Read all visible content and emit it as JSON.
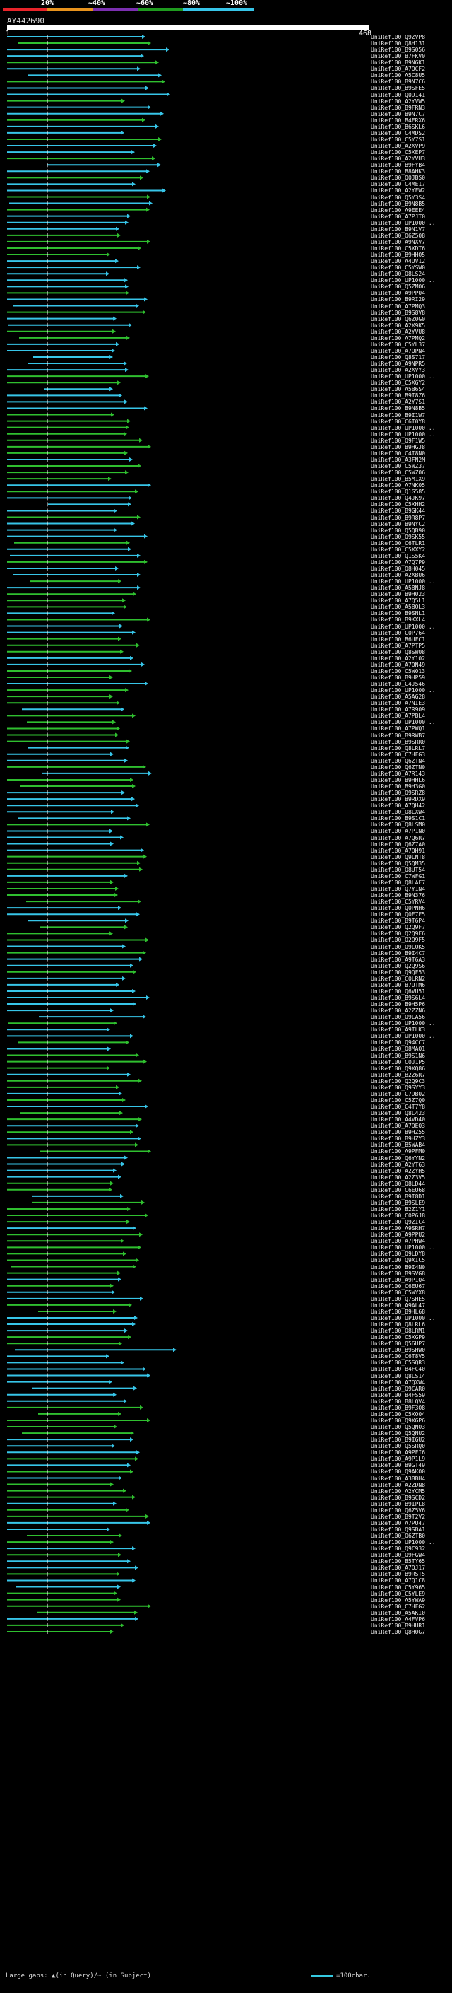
{
  "scale": {
    "labels": [
      "20%",
      "~40%",
      "~60%",
      "~80%",
      "~100%"
    ],
    "colors": [
      "#e8242a",
      "#e8931d",
      "#7b2fb0",
      "#1f9b1f",
      "#37c5e8"
    ]
  },
  "query": {
    "title": "AY442690",
    "start": "1",
    "end": "468"
  },
  "legend": {
    "large_gaps": "Large gaps: ▲(in Query)/~ (in Subject)",
    "scale_bar": "=100char."
  },
  "hit_names": [
    "UniRef100_Q9ZVP8",
    "UniRef100_Q8H131",
    "UniRef100_B9S056",
    "UniRef100_B7FKV0",
    "UniRef100_B9NGK1",
    "UniRef100_A7QCF2",
    "UniRef100_A5C8U5",
    "UniRef100_B9N7C6",
    "UniRef100_B9SFE5",
    "UniRef100_Q0D141",
    "UniRef100_A2YVW5",
    "UniRef100_B9FRN3",
    "UniRef100_B9N7C7",
    "UniRef100_B4FRX6",
    "UniRef100_B6SKL6",
    "UniRef100_C4MDS2",
    "UniRef100_C5Y7S1",
    "UniRef100_A2XVP9",
    "UniRef100_C5XEP7",
    "UniRef100_A2YVU3",
    "UniRef100_B9FYB4",
    "UniRef100_B8AHK3",
    "UniRef100_Q0JBS0",
    "UniRef100_C4ME17",
    "UniRef100_A2YFW2",
    "UniRef100_Q5Y3S4",
    "UniRef100_B9N8B5",
    "UniRef100_A9EEE4",
    "UniRef100_A7PJT0",
    "UniRef100_UP1000...",
    "UniRef100_B9N1V7",
    "UniRef100_Q6Z508",
    "UniRef100_A9NXV7",
    "UniRef100_C5XDT6",
    "UniRef100_B9HHO5",
    "UniRef100_A4UV12",
    "UniRef100_C5YSW0",
    "UniRef100_Q8LS24",
    "UniRef100_UP1000...",
    "UniRef100_Q5ZMO6",
    "UniRef100_A9PP04",
    "UniRef100_B9RI29",
    "UniRef100_A7PMQ3",
    "UniRef100_B9S8V8",
    "UniRef100_Q6Z0G0",
    "UniRef100_A2X9K5",
    "UniRef100_A2YVU8",
    "UniRef100_A7PMQ2",
    "UniRef100_C5YL37",
    "UniRef100_A7QPN4",
    "UniRef100_Q8S717",
    "UniRef100_A9NPR5",
    "UniRef100_A2XVY3",
    "UniRef100_UP1000...",
    "UniRef100_C5XGY2",
    "UniRef100_A5B6S4",
    "UniRef100_B9T8Z6",
    "UniRef100_A2Y7S1",
    "UniRef100_B9N8B5",
    "UniRef100_B9I1W7",
    "UniRef100_C6T0Y8",
    "UniRef100_UP1000...",
    "UniRef100_UP1000...",
    "UniRef100_Q9F1W5",
    "UniRef100_B9HGJ8",
    "UniRef100_C4I8N0",
    "UniRef100_A3FN2M",
    "UniRef100_C5WZ37",
    "UniRef100_C5WZ06",
    "UniRef100_B5M1X9",
    "UniRef100_A7NK05",
    "UniRef100_Q1G585",
    "UniRef100_Q4JK97",
    "UniRef100_C5XHH2",
    "UniRef100_B9GK44",
    "UniRef100_B9R8P7",
    "UniRef100_B9NYC2",
    "UniRef100_Q5QB90",
    "UniRef100_Q9SK55",
    "UniRef100_C6TLR1",
    "UniRef100_C5XXY2",
    "UniRef100_Q1S5K4",
    "UniRef100_A7Q7P9",
    "UniRef100_Q8H045",
    "UniRef100_A2XBU6",
    "UniRef100_UP1000...",
    "UniRef100_A5BNJ8",
    "UniRef100_B9H023",
    "UniRef100_A7Q5L1",
    "UniRef100_A5BQL3",
    "UniRef100_B9SNL1",
    "UniRef100_B9KXL4",
    "UniRef100_UP1000...",
    "UniRef100_C0P764",
    "UniRef100_B6UFC1",
    "UniRef100_A7PTP5",
    "UniRef100_Q8SW08",
    "UniRef100_A2Y102",
    "UniRef100_A7QN49",
    "UniRef100_C5W013",
    "UniRef100_B9HP59",
    "UniRef100_C4J546",
    "UniRef100_UP1000...",
    "UniRef100_A5AG28",
    "UniRef100_A7NIE3",
    "UniRef100_A7R909",
    "UniRef100_A7PBL4",
    "UniRef100_UP1000...",
    "UniRef100_A7PWQ1",
    "UniRef100_B9RWB7",
    "UniRef100_B9SRR0",
    "UniRef100_Q8LRL7",
    "UniRef100_C7HFG3",
    "UniRef100_Q6ZTN4",
    "UniRef100_Q6ZTN0",
    "UniRef100_A7R143",
    "UniRef100_B9HHL6",
    "UniRef100_B9H3G0",
    "UniRef100_Q9SRZ8",
    "UniRef100_B9RDX9",
    "UniRef100_A7QH42",
    "UniRef100_Q8LXW4",
    "UniRef100_B9S1C1",
    "UniRef100_Q8LSM0",
    "UniRef100_A7P1N0",
    "UniRef100_A7Q6R7",
    "UniRef100_Q6Z7A0",
    "UniRef100_A7QH91",
    "UniRef100_Q9LNT8",
    "UniRef100_Q5QM35",
    "UniRef100_Q8UT54",
    "UniRef100_C7WFG1",
    "UniRef100_Q8LAF7",
    "UniRef100_Q7Y1N4",
    "UniRef100_B9N376",
    "UniRef100_C5YRV4",
    "UniRef100_Q0PNH6",
    "UniRef100_Q0F7F5",
    "UniRef100_B9T6P4",
    "UniRef100_Q2Q9F7",
    "UniRef100_Q2Q9F6",
    "UniRef100_Q2Q9F5",
    "UniRef100_Q9LQK5",
    "UniRef100_B9I4C7",
    "UniRef100_A9T6A3",
    "UniRef100_Q2Q9S6",
    "UniRef100_Q9QF53",
    "UniRef100_C0LRN2",
    "UniRef100_B7UTM6",
    "UniRef100_Q6VU51",
    "UniRef100_B9S6L4",
    "UniRef100_B9H5P6",
    "UniRef100_A2ZZN6",
    "UniRef100_Q9LA56",
    "UniRef100_UP1000...",
    "UniRef100_A9TLK3",
    "UniRef100_UP1000...",
    "UniRef100_Q94CC7",
    "UniRef100_Q8MAQ1",
    "UniRef100_B9S1N6",
    "UniRef100_C0J1P5",
    "UniRef100_Q9XQ86",
    "UniRef100_B2Z6R7",
    "UniRef100_Q2Q9C3",
    "UniRef100_Q9SYY3",
    "UniRef100_C7DB02",
    "UniRef100_C5Z7Q0",
    "UniRef100_C4T7Y8",
    "UniRef100_Q8L423",
    "UniRef100_A4VD40",
    "UniRef100_A7QEQ3",
    "UniRef100_B9HZ55",
    "UniRef100_B9HZY3",
    "UniRef100_B5WAB4",
    "UniRef100_A9PFM0",
    "UniRef100_Q6YYN2",
    "UniRef100_A2YT63",
    "UniRef100_A2ZYH5",
    "UniRef100_A2Z3V5",
    "UniRef100_Q8LD44",
    "UniRef100_C6EU68",
    "UniRef100_B9I8D1",
    "UniRef100_B9SLE9",
    "UniRef100_B2Z1Y1",
    "UniRef100_C0P6J8",
    "UniRef100_Q9ZIC4",
    "UniRef100_A9SRH7",
    "UniRef100_A9PPU2",
    "UniRef100_A7PHW4",
    "UniRef100_UP1000...",
    "UniRef100_Q9LDY8",
    "UniRef100_Q9XIC5",
    "UniRef100_B9I4N0",
    "UniRef100_B9SVG8",
    "UniRef100_A9P1Q4",
    "UniRef100_C6EU67",
    "UniRef100_C5WYX8",
    "UniRef100_Q7SHE5",
    "UniRef100_A9AL47",
    "UniRef100_B9HL68",
    "UniRef100_UP1000...",
    "UniRef100_Q8LRL6",
    "UniRef100_Q8LRM1",
    "UniRef100_C5XGP9",
    "UniRef100_Q56UP7",
    "UniRef100_B9SHW0",
    "UniRef100_C6T8V5",
    "UniRef100_C5SQR3",
    "UniRef100_B4FC40",
    "UniRef100_Q8LS14",
    "UniRef100_A7QXW4",
    "UniRef100_Q9CAR0",
    "UniRef100_B4FS59",
    "UniRef100_B8LQV4",
    "UniRef100_B9F3O8",
    "UniRef100_C5XO04",
    "UniRef100_Q9XGP6",
    "UniRef100_Q5QNO3",
    "UniRef100_Q5QNU2",
    "UniRef100_B9IGU2",
    "UniRef100_Q5SRQ0",
    "UniRef100_A9PFI6",
    "UniRef100_A9P1L9",
    "UniRef100_B9GT49",
    "UniRef100_Q9AKO0",
    "UniRef100_A3BBH4",
    "UniRef100_A2ZDN8",
    "UniRef100_A2YCM5",
    "UniRef100_B9SCD2",
    "UniRef100_B9IPL8",
    "UniRef100_Q6Z5V6",
    "UniRef100_B9T2V2",
    "UniRef100_A7PU47",
    "UniRef100_Q9SBA1",
    "UniRef100_Q6ZTB0",
    "UniRef100_UP1000...",
    "UniRef100_Q9C932",
    "UniRef100_Q9FGW4",
    "UniRef100_B5TY65",
    "UniRef100_A7QJ17",
    "UniRef100_B9RST5",
    "UniRef100_A7Q1C8",
    "UniRef100_C5Y965",
    "UniRef100_C5YLE9",
    "UniRef100_A5YWA9",
    "UniRef100_C7HFG2",
    "UniRef100_A5AKI0",
    "UniRef100_A4FVP6",
    "UniRef100_B9HUR1",
    "UniRef100_Q8H0G7"
  ]
}
